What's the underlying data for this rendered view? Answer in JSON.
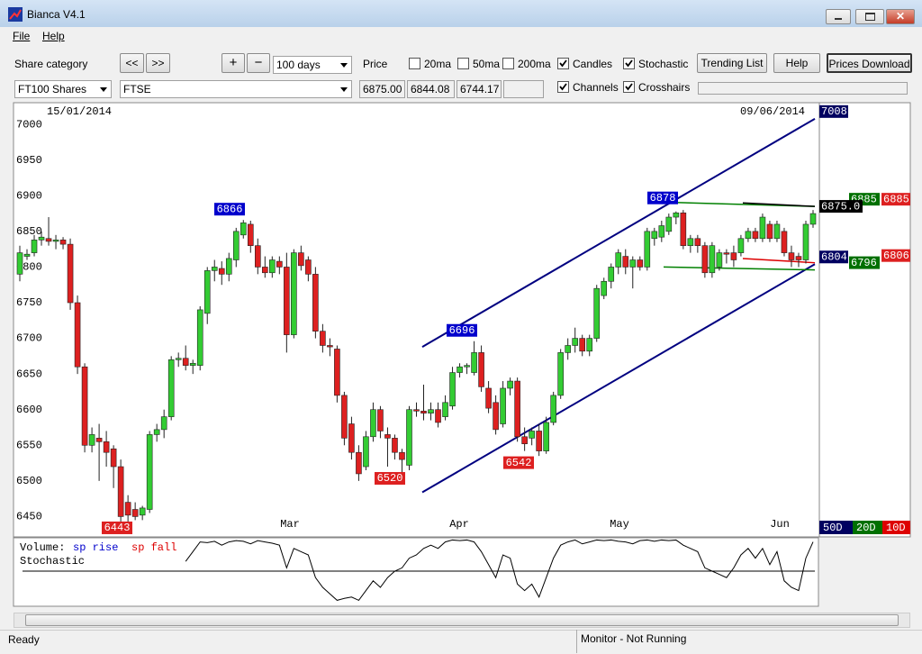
{
  "window": {
    "title": "Bianca V4.1",
    "menu": [
      "File",
      "Help"
    ]
  },
  "toolbar": {
    "share_category_label": "Share category",
    "prev": "<<",
    "next": ">>",
    "zoom_in": "+",
    "zoom_out": "−",
    "period": "100 days",
    "price_label": "Price",
    "options": [
      {
        "label": "20ma",
        "checked": false
      },
      {
        "label": "50ma",
        "checked": false
      },
      {
        "label": "200ma",
        "checked": false
      },
      {
        "label": "Candles",
        "checked": true
      },
      {
        "label": "Stochastic",
        "checked": true
      },
      {
        "label": "Channels",
        "checked": true
      },
      {
        "label": "Crosshairs",
        "checked": true
      }
    ],
    "buttons": [
      "Trending List",
      "Help",
      "Prices Download"
    ],
    "category": "FT100 Shares",
    "share": "FTSE",
    "prices": [
      "6875.00",
      "6844.08",
      "6744.17"
    ]
  },
  "chart": {
    "type": "candlestick",
    "start_date": "15/01/2014",
    "end_date": "09/06/2014",
    "ylim": [
      6424,
      7028
    ],
    "yticks": [
      6450,
      6500,
      6550,
      6600,
      6650,
      6700,
      6750,
      6800,
      6850,
      6900,
      6950,
      7000
    ],
    "months": [
      "Mar",
      "Apr",
      "May",
      "Jun"
    ],
    "up_color": "#33cc33",
    "down_color": "#dd2020",
    "candles": [
      [
        6790,
        6830,
        6780,
        6820
      ],
      [
        6815,
        6825,
        6810,
        6818
      ],
      [
        6820,
        6845,
        6815,
        6838
      ],
      [
        6838,
        6850,
        6830,
        6842
      ],
      [
        6840,
        6870,
        6830,
        6836
      ],
      [
        6836,
        6845,
        6825,
        6838
      ],
      [
        6838,
        6842,
        6825,
        6832
      ],
      [
        6832,
        6840,
        6740,
        6750
      ],
      [
        6750,
        6760,
        6650,
        6660
      ],
      [
        6660,
        6665,
        6540,
        6550
      ],
      [
        6550,
        6575,
        6540,
        6565
      ],
      [
        6560,
        6580,
        6500,
        6555
      ],
      [
        6555,
        6570,
        6520,
        6540
      ],
      [
        6545,
        6550,
        6490,
        6520
      ],
      [
        6520,
        6530,
        6443,
        6450
      ],
      [
        6470,
        6480,
        6443,
        6452
      ],
      [
        6460,
        6470,
        6445,
        6450
      ],
      [
        6452,
        6465,
        6445,
        6462
      ],
      [
        6460,
        6570,
        6455,
        6565
      ],
      [
        6565,
        6580,
        6555,
        6572
      ],
      [
        6572,
        6600,
        6560,
        6590
      ],
      [
        6590,
        6675,
        6585,
        6670
      ],
      [
        6670,
        6680,
        6660,
        6672
      ],
      [
        6672,
        6690,
        6655,
        6662
      ],
      [
        6662,
        6670,
        6650,
        6665
      ],
      [
        6662,
        6745,
        6655,
        6740
      ],
      [
        6735,
        6800,
        6720,
        6795
      ],
      [
        6795,
        6810,
        6780,
        6800
      ],
      [
        6798,
        6808,
        6775,
        6790
      ],
      [
        6790,
        6820,
        6780,
        6812
      ],
      [
        6810,
        6855,
        6800,
        6850
      ],
      [
        6845,
        6866,
        6840,
        6862
      ],
      [
        6860,
        6865,
        6820,
        6830
      ],
      [
        6830,
        6840,
        6790,
        6800
      ],
      [
        6800,
        6815,
        6785,
        6792
      ],
      [
        6792,
        6815,
        6785,
        6810
      ],
      [
        6808,
        6815,
        6790,
        6800
      ],
      [
        6800,
        6820,
        6680,
        6705
      ],
      [
        6705,
        6825,
        6700,
        6820
      ],
      [
        6820,
        6830,
        6795,
        6802
      ],
      [
        6810,
        6815,
        6780,
        6790
      ],
      [
        6790,
        6800,
        6700,
        6710
      ],
      [
        6710,
        6720,
        6680,
        6690
      ],
      [
        6690,
        6700,
        6675,
        6688
      ],
      [
        6685,
        6690,
        6610,
        6620
      ],
      [
        6620,
        6625,
        6550,
        6560
      ],
      [
        6580,
        6590,
        6530,
        6540
      ],
      [
        6540,
        6550,
        6500,
        6510
      ],
      [
        6520,
        6570,
        6515,
        6562
      ],
      [
        6562,
        6610,
        6555,
        6600
      ],
      [
        6600,
        6605,
        6560,
        6570
      ],
      [
        6565,
        6575,
        6520,
        6560
      ],
      [
        6560,
        6565,
        6530,
        6540
      ],
      [
        6540,
        6545,
        6510,
        6530
      ],
      [
        6522,
        6605,
        6515,
        6600
      ],
      [
        6600,
        6610,
        6590,
        6598
      ],
      [
        6598,
        6635,
        6585,
        6595
      ],
      [
        6595,
        6610,
        6585,
        6600
      ],
      [
        6600,
        6610,
        6575,
        6582
      ],
      [
        6590,
        6620,
        6585,
        6610
      ],
      [
        6605,
        6660,
        6600,
        6652
      ],
      [
        6652,
        6665,
        6645,
        6660
      ],
      [
        6660,
        6665,
        6650,
        6662
      ],
      [
        6652,
        6696,
        6648,
        6680
      ],
      [
        6680,
        6690,
        6625,
        6632
      ],
      [
        6630,
        6640,
        6595,
        6602
      ],
      [
        6610,
        6620,
        6565,
        6572
      ],
      [
        6580,
        6640,
        6575,
        6630
      ],
      [
        6630,
        6645,
        6620,
        6640
      ],
      [
        6640,
        6645,
        6555,
        6562
      ],
      [
        6562,
        6575,
        6542,
        6552
      ],
      [
        6560,
        6575,
        6550,
        6570
      ],
      [
        6570,
        6580,
        6535,
        6542
      ],
      [
        6542,
        6590,
        6538,
        6582
      ],
      [
        6582,
        6625,
        6578,
        6620
      ],
      [
        6620,
        6685,
        6615,
        6680
      ],
      [
        6680,
        6700,
        6670,
        6690
      ],
      [
        6690,
        6715,
        6680,
        6700
      ],
      [
        6700,
        6705,
        6675,
        6682
      ],
      [
        6682,
        6705,
        6675,
        6700
      ],
      [
        6700,
        6775,
        6695,
        6770
      ],
      [
        6760,
        6785,
        6755,
        6780
      ],
      [
        6780,
        6805,
        6770,
        6800
      ],
      [
        6800,
        6825,
        6790,
        6820
      ],
      [
        6815,
        6825,
        6790,
        6800
      ],
      [
        6800,
        6815,
        6770,
        6810
      ],
      [
        6810,
        6815,
        6795,
        6800
      ],
      [
        6800,
        6855,
        6795,
        6850
      ],
      [
        6840,
        6855,
        6830,
        6850
      ],
      [
        6842,
        6865,
        6835,
        6858
      ],
      [
        6850,
        6875,
        6845,
        6870
      ],
      [
        6870,
        6878,
        6860,
        6876
      ],
      [
        6876,
        6880,
        6825,
        6830
      ],
      [
        6830,
        6845,
        6820,
        6840
      ],
      [
        6840,
        6845,
        6820,
        6830
      ],
      [
        6830,
        6835,
        6785,
        6792
      ],
      [
        6792,
        6835,
        6785,
        6830
      ],
      [
        6800,
        6825,
        6795,
        6820
      ],
      [
        6820,
        6825,
        6805,
        6818
      ],
      [
        6820,
        6830,
        6800,
        6810
      ],
      [
        6820,
        6845,
        6815,
        6840
      ],
      [
        6840,
        6855,
        6835,
        6850
      ],
      [
        6850,
        6855,
        6835,
        6840
      ],
      [
        6840,
        6875,
        6835,
        6870
      ],
      [
        6860,
        6865,
        6835,
        6840
      ],
      [
        6840,
        6865,
        6835,
        6860
      ],
      [
        6850,
        6855,
        6815,
        6820
      ],
      [
        6820,
        6830,
        6800,
        6810
      ],
      [
        6815,
        6820,
        6800,
        6810
      ],
      [
        6810,
        6865,
        6805,
        6860
      ],
      [
        6860,
        6880,
        6855,
        6875
      ]
    ],
    "channels": [
      {
        "color": "#000080",
        "values": [
          6688,
          7008
        ]
      },
      {
        "color": "#000080",
        "values": [
          6484,
          6804
        ]
      },
      {
        "color": "#008000",
        "values": [
          6891,
          6885
        ]
      },
      {
        "color": "#008000",
        "values": [
          6800,
          6796
        ]
      },
      {
        "color": "#dd0000",
        "values": [
          6812,
          6806
        ]
      },
      {
        "color": "#000000",
        "values": [
          6890,
          6885
        ]
      }
    ],
    "annotations": [
      {
        "value": 6866,
        "color": "#0000cc"
      },
      {
        "value": 6443,
        "color": "#dd2020"
      },
      {
        "value": 6520,
        "color": "#dd2020"
      },
      {
        "value": 6696,
        "color": "#0000cc"
      },
      {
        "value": 6542,
        "color": "#dd2020"
      },
      {
        "value": 6878,
        "color": "#0000cc"
      }
    ],
    "price_labels": [
      {
        "value": 7008,
        "color": "#000060"
      },
      {
        "value": 6885,
        "color": "#007000"
      },
      {
        "value": 6885,
        "color": "#dd2020"
      },
      {
        "value": {
          "value": 6875,
          "label": "6875.0"
        },
        "color": "#000000"
      },
      {
        "value": 6804,
        "color": "#000060"
      },
      {
        "value": 6796,
        "color": "#007000"
      },
      {
        "value": 6806,
        "color": "#dd2020"
      }
    ],
    "periods": [
      {
        "label": "50D",
        "color": "#000060"
      },
      {
        "label": "20D",
        "color": "#007000"
      },
      {
        "label": "10D",
        "color": "#dd0000"
      }
    ]
  },
  "lower_panel": {
    "volume_label": "Volume:",
    "rise_label": "sp rise",
    "fall_label": "sp fall",
    "stochastic_label": "Stochastic",
    "ylim": [
      0,
      100
    ],
    "midline": 50,
    "stochastic": [
      null,
      null,
      null,
      null,
      null,
      null,
      null,
      null,
      null,
      null,
      null,
      null,
      null,
      null,
      null,
      null,
      null,
      null,
      null,
      null,
      null,
      null,
      null,
      65,
      80,
      95,
      94,
      96,
      90,
      95,
      97,
      96,
      92,
      97,
      95,
      93,
      90,
      55,
      85,
      80,
      75,
      40,
      25,
      15,
      5,
      8,
      10,
      5,
      20,
      35,
      25,
      40,
      50,
      55,
      70,
      75,
      85,
      90,
      85,
      95,
      98,
      97,
      98,
      95,
      80,
      60,
      40,
      75,
      70,
      30,
      20,
      30,
      10,
      40,
      70,
      90,
      95,
      98,
      92,
      95,
      98,
      97,
      98,
      96,
      95,
      92,
      97,
      98,
      96,
      98,
      97,
      98,
      90,
      85,
      80,
      55,
      50,
      45,
      40,
      55,
      75,
      85,
      70,
      85,
      60,
      80,
      35,
      25,
      20,
      70,
      95
    ]
  },
  "status": {
    "left": "Ready",
    "right": "Monitor - Not Running"
  }
}
